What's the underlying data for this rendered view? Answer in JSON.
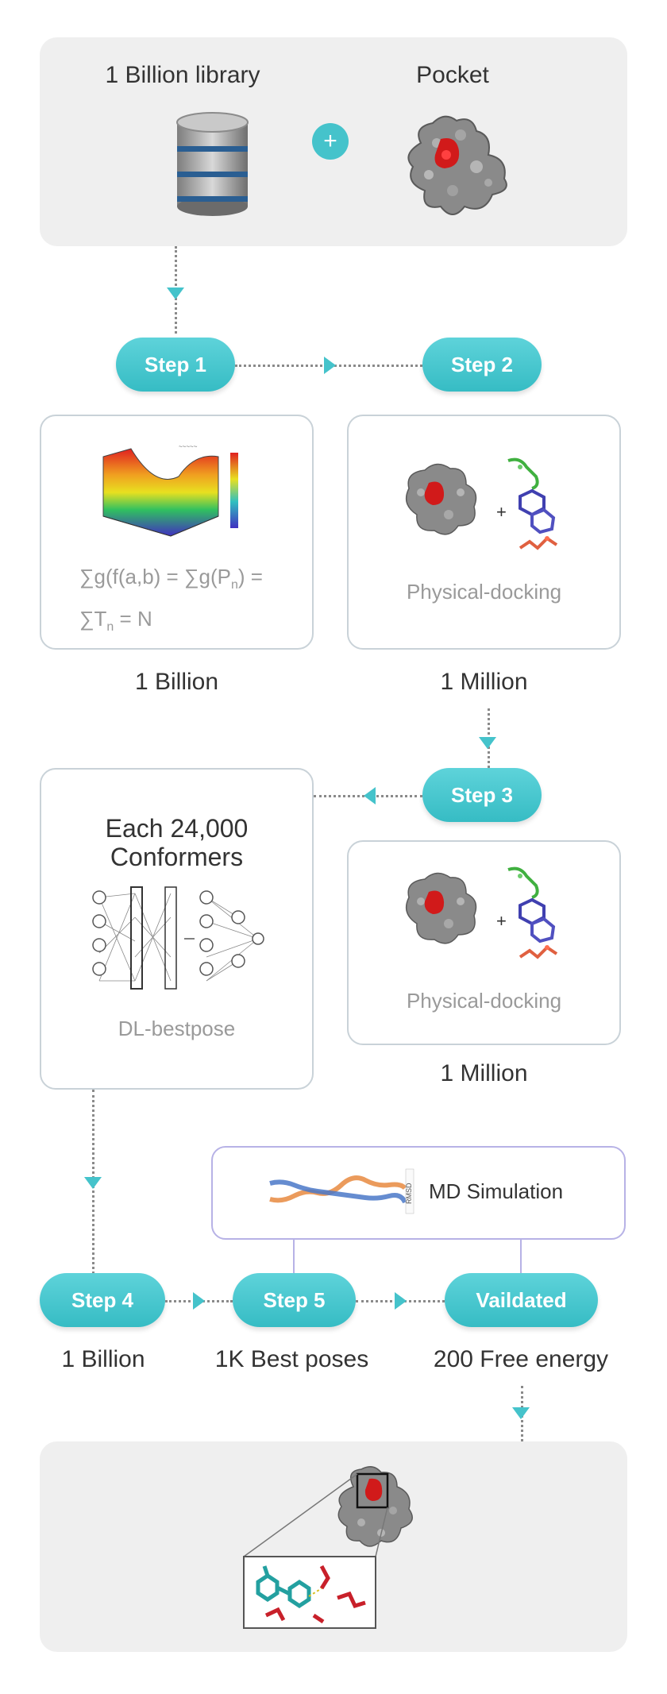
{
  "top": {
    "library_label": "1 Billion library",
    "pocket_label": "Pocket",
    "plus": "+"
  },
  "steps": {
    "step1": "Step 1",
    "step2": "Step 2",
    "step3": "Step 3",
    "step4": "Step 4",
    "step5": "Step 5",
    "validated": "Vaildated"
  },
  "card1": {
    "formula_line1_a": "∑g(f(a,b) = ∑g(P",
    "formula_line1_sub": "n",
    "formula_line1_b": ") =",
    "formula_line2_a": "∑T",
    "formula_line2_sub": "n",
    "formula_line2_b": " = N",
    "count": "1 Billion"
  },
  "card2": {
    "caption": "Physical-docking",
    "count": "1 Million",
    "plus": "+"
  },
  "card3": {
    "title": "Each 24,000 Conformers",
    "caption": "DL-bestpose"
  },
  "card4": {
    "caption": "Physical-docking",
    "count": "1 Million",
    "plus": "+"
  },
  "md": {
    "label": "MD Simulation",
    "axis_label": "RMSD"
  },
  "bottom_counts": {
    "step4": "1 Billion",
    "step5": "1K Best poses",
    "validated": "200 Free energy"
  },
  "colors": {
    "accent": "#45c3cb",
    "panel": "#efefef",
    "card_border": "#c9d2d8",
    "md_border": "#b7b2e6"
  }
}
